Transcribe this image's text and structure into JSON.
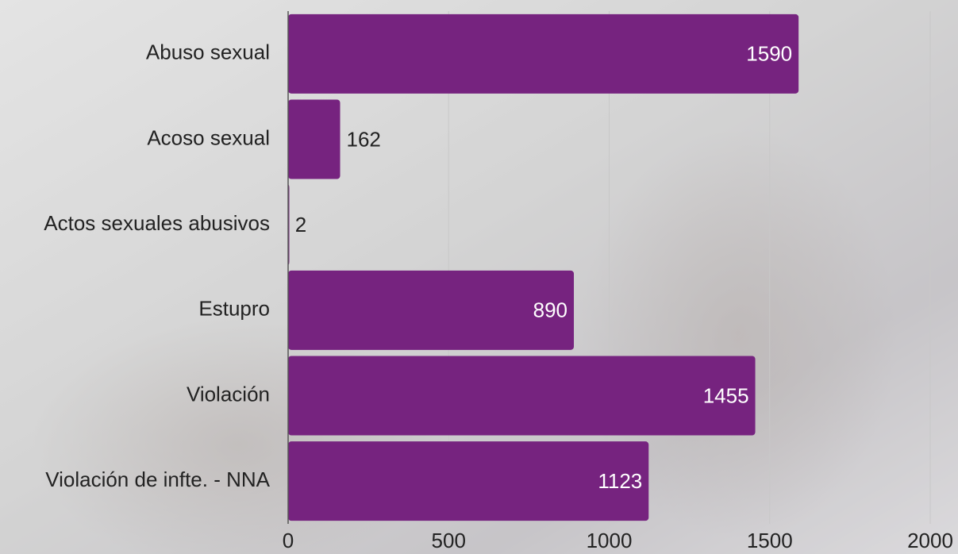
{
  "chart_data": {
    "type": "bar",
    "orientation": "horizontal",
    "categories": [
      "Abuso sexual",
      "Acoso sexual",
      "Actos sexuales abusivos",
      "Estupro",
      "Violación",
      "Violación de infte. - NNA"
    ],
    "values": [
      1590,
      162,
      2,
      890,
      1455,
      1123
    ],
    "color": "#76237f",
    "xlim": [
      0,
      2000
    ],
    "xticks": [
      0,
      500,
      1000,
      1500,
      2000
    ],
    "grid": true
  }
}
